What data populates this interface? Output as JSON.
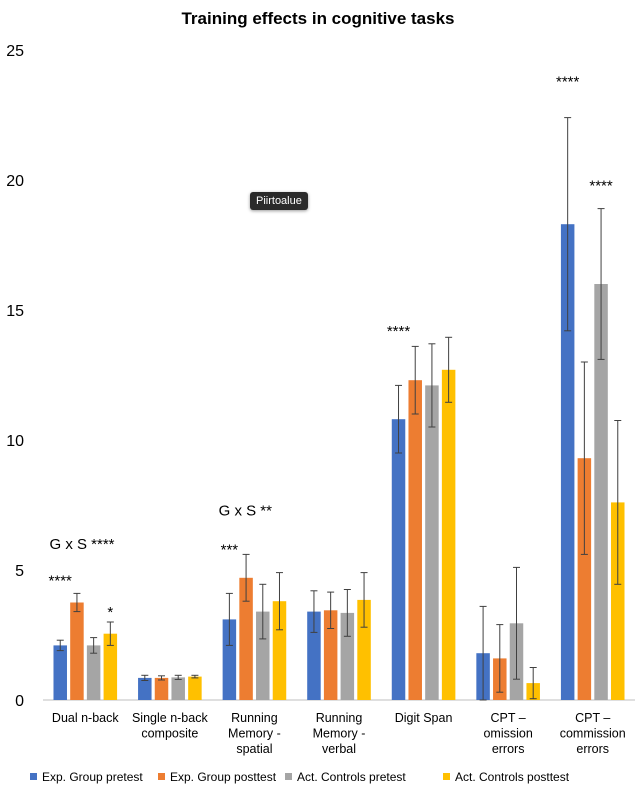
{
  "chart_data": {
    "type": "bar",
    "title": "Training effects in cognitive tasks",
    "xlabel": "",
    "ylabel": "",
    "ylim": [
      0,
      25
    ],
    "yticks": [
      "0",
      "5",
      "10",
      "15",
      "20",
      "25"
    ],
    "grid": false,
    "legend_position": "bottom",
    "categories": [
      [
        "Dual n-back"
      ],
      [
        "Single n-back",
        "composite"
      ],
      [
        "Running",
        "Memory -",
        "spatial"
      ],
      [
        "Running",
        "Memory -",
        "verbal"
      ],
      [
        "Digit Span"
      ],
      [
        "CPT –",
        "omission",
        "errors"
      ],
      [
        "CPT –",
        "commission",
        "errors"
      ]
    ],
    "series": [
      {
        "name": "Exp. Group pretest",
        "color": "#4472C4",
        "values": [
          2.1,
          0.85,
          3.1,
          3.4,
          10.8,
          1.8,
          18.3
        ],
        "errors": [
          0.2,
          0.1,
          1.0,
          0.8,
          1.3,
          1.8,
          4.1
        ]
      },
      {
        "name": "Exp. Group posttest",
        "color": "#ED7D31",
        "values": [
          3.75,
          0.85,
          4.7,
          3.45,
          12.3,
          1.6,
          9.3
        ],
        "errors": [
          0.35,
          0.08,
          0.9,
          0.7,
          1.3,
          1.3,
          3.7
        ]
      },
      {
        "name": "Act. Controls pretest",
        "color": "#A5A5A5",
        "values": [
          2.1,
          0.87,
          3.4,
          3.35,
          12.1,
          2.95,
          16.0
        ],
        "errors": [
          0.3,
          0.08,
          1.05,
          0.9,
          1.6,
          2.15,
          2.9
        ]
      },
      {
        "name": "Act. Controls posttest",
        "color": "#FFC000",
        "values": [
          2.55,
          0.9,
          3.8,
          3.85,
          12.7,
          0.65,
          7.6
        ],
        "errors": [
          0.45,
          0.05,
          1.1,
          1.05,
          1.25,
          0.6,
          3.15
        ]
      }
    ],
    "annotations": [
      {
        "text": "G x S ****",
        "category": 0,
        "y": 5.8
      },
      {
        "text": "****",
        "category": 0,
        "bar": 0,
        "y": 4.4
      },
      {
        "text": "*",
        "category": 0,
        "bar": 3,
        "y": 3.2
      },
      {
        "text": "G x S **",
        "category": 2,
        "y": 7.1
      },
      {
        "text": "***",
        "category": 2,
        "bar": 0,
        "y": 5.6
      },
      {
        "text": "****",
        "category": 4,
        "bar": 0,
        "y": 14.0
      },
      {
        "text": "****",
        "category": 6,
        "bar": 0,
        "y": 23.6
      },
      {
        "text": "****",
        "category": 6,
        "bar": 2,
        "y": 19.6
      }
    ]
  },
  "tooltip": {
    "text": "Piirtoalue"
  }
}
